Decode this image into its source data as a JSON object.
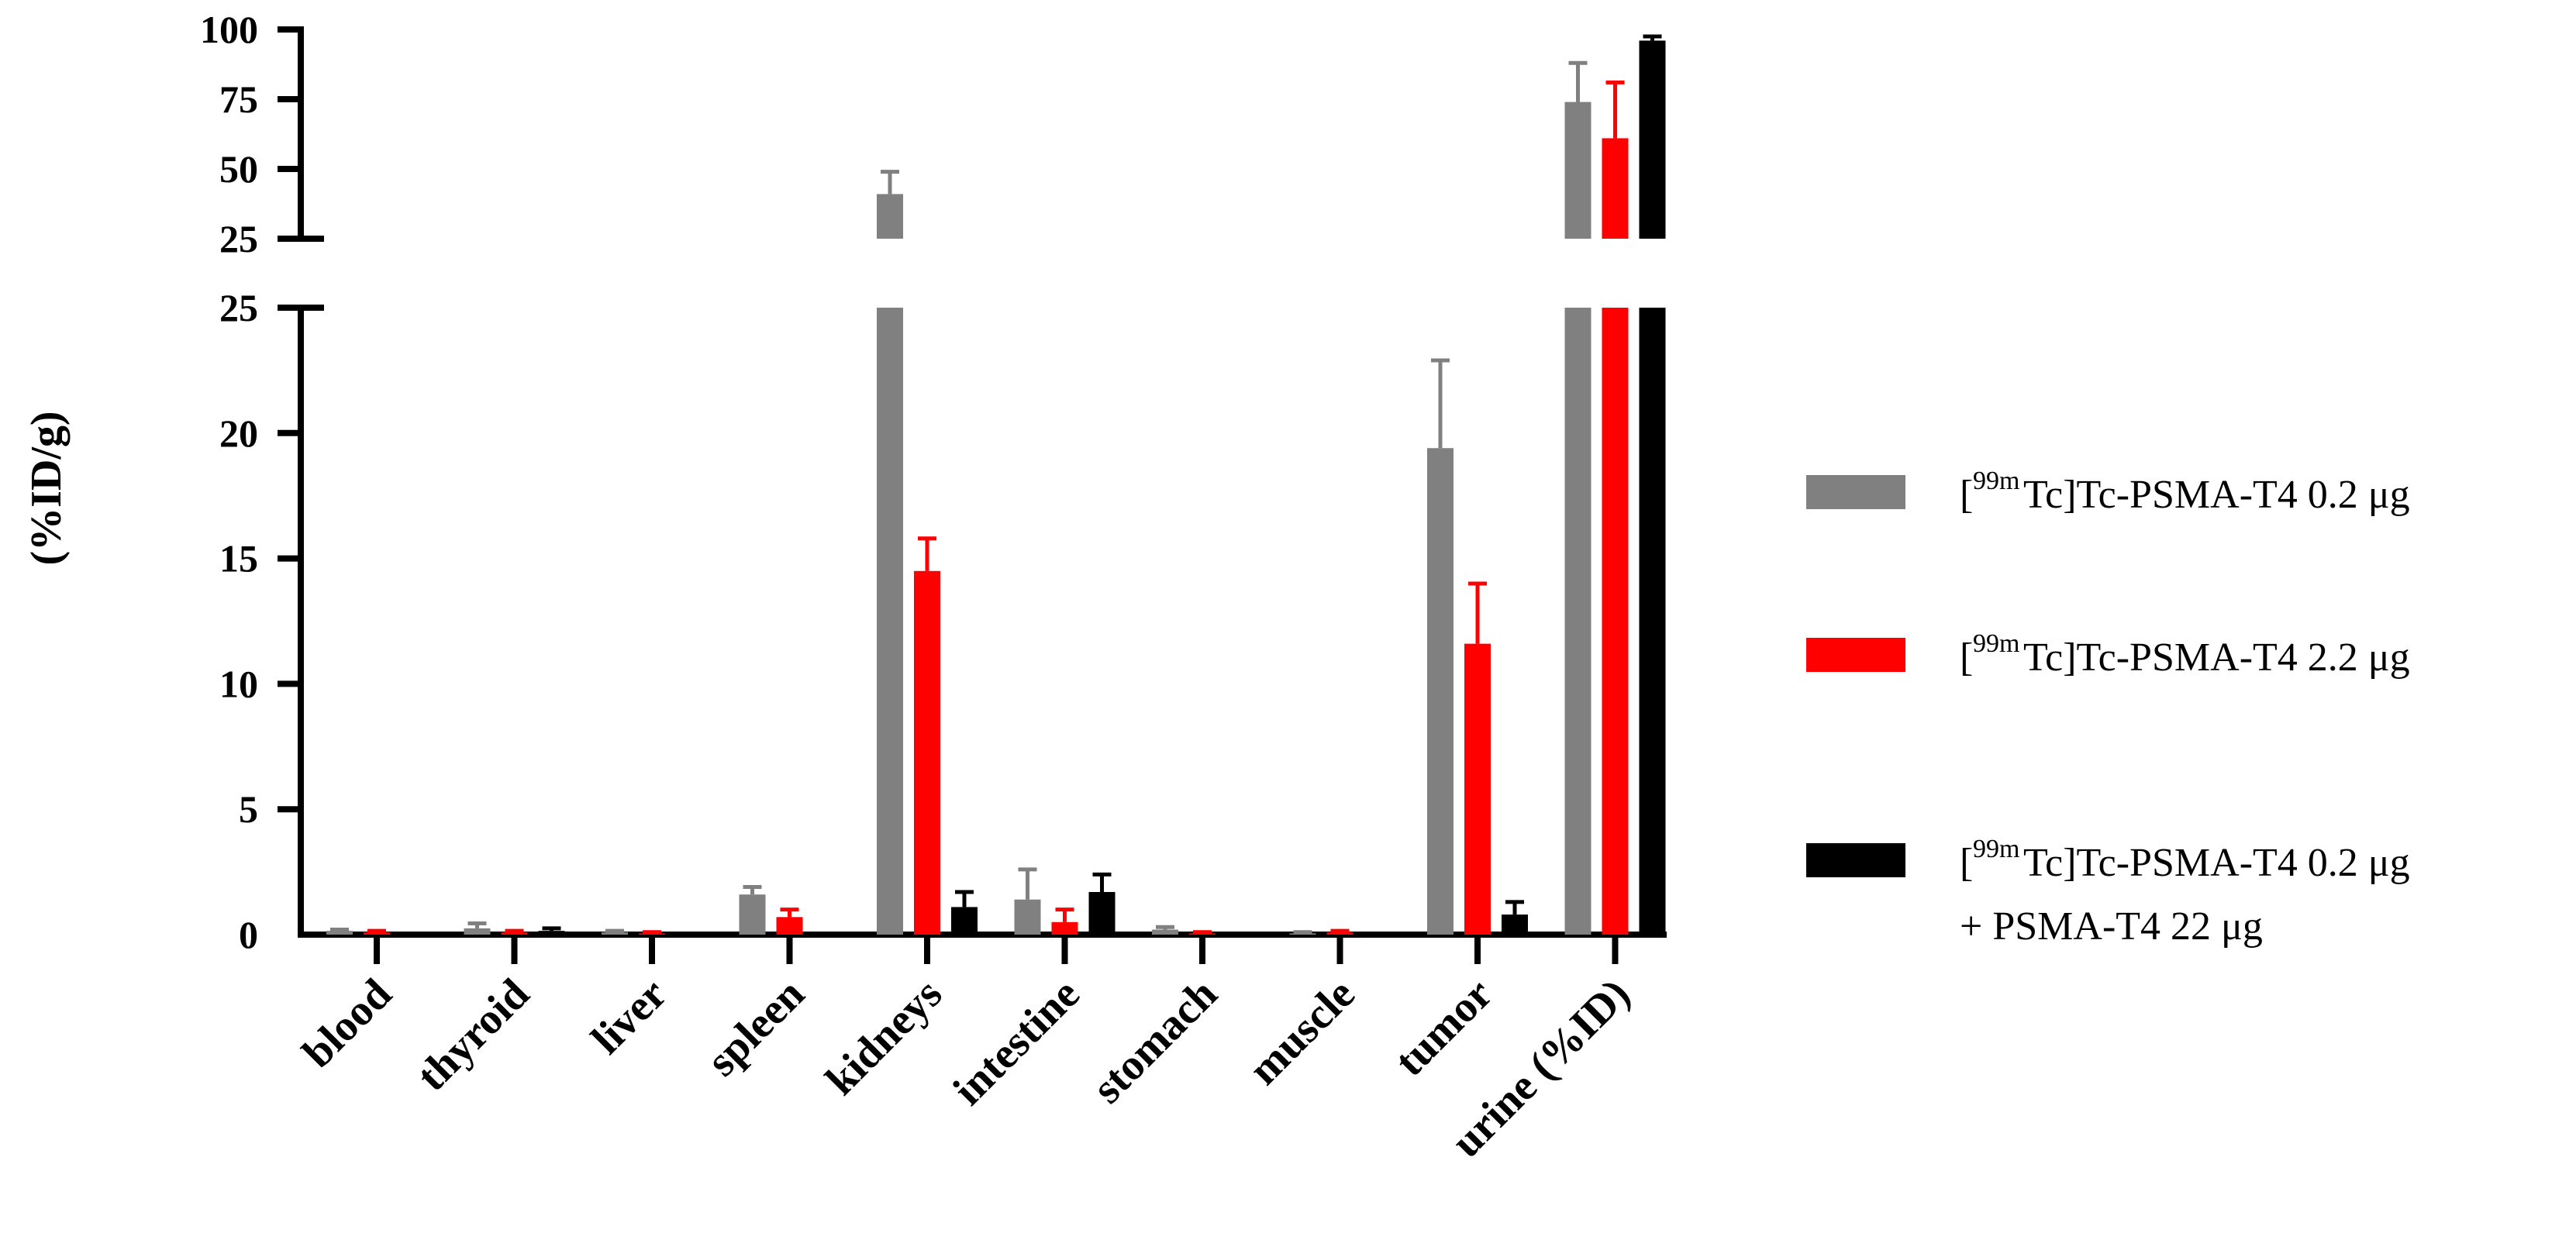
{
  "chart_data": {
    "type": "bar",
    "ylabel": "(%ID/g)",
    "y_axis_break": {
      "lower_segment": [
        0,
        25
      ],
      "upper_segment": [
        25,
        100
      ]
    },
    "lower_ticks": [
      "0",
      "5",
      "10",
      "15",
      "20",
      "25"
    ],
    "upper_ticks": [
      "25",
      "50",
      "75",
      "100"
    ],
    "categories": [
      "blood",
      "thyroid",
      "liver",
      "spleen",
      "kidneys",
      "intestine",
      "stomach",
      "muscle",
      "tumor",
      "urine (%ID)"
    ],
    "series": [
      {
        "color": "#808080",
        "legend": {
          "prefix": "[",
          "superscript": "99m",
          "line1": "Tc]Tc-PSMA-T4 0.2 μg",
          "line2": ""
        },
        "values": [
          0.15,
          0.25,
          0.1,
          1.6,
          41,
          1.4,
          0.2,
          0.05,
          19.4,
          74
        ],
        "errors": [
          0.05,
          0.2,
          0.05,
          0.3,
          8,
          1.2,
          0.1,
          0.05,
          3.5,
          14
        ]
      },
      {
        "color": "#ff0000",
        "legend": {
          "prefix": "[",
          "superscript": "99m",
          "line1": "Tc]Tc-PSMA-T4 2.2 μg",
          "line2": ""
        },
        "values": [
          0.1,
          0.1,
          0.05,
          0.7,
          14.5,
          0.5,
          0.05,
          0.1,
          11.6,
          61
        ],
        "errors": [
          0.05,
          0.05,
          0.05,
          0.3,
          1.3,
          0.5,
          0.05,
          0.05,
          2.4,
          20
        ]
      },
      {
        "color": "#000000",
        "legend": {
          "prefix": "[",
          "superscript": "99m",
          "line1": "Tc]Tc-PSMA-T4 0.2 μg",
          "line2": "+ PSMA-T4 22 μg"
        },
        "values": [
          0.05,
          0.15,
          0.05,
          0.05,
          1.1,
          1.7,
          0.08,
          0.05,
          0.8,
          96
        ],
        "errors": [
          0.02,
          0.1,
          0.02,
          0.02,
          0.6,
          0.7,
          0.03,
          0.02,
          0.5,
          1.5
        ]
      }
    ],
    "legend_position": "right"
  }
}
